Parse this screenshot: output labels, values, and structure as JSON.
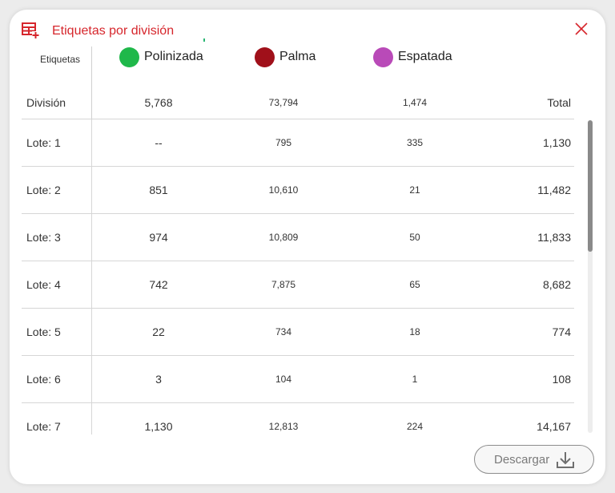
{
  "dialog": {
    "title": "Etiquetas por división",
    "title_color": "#d6262c",
    "icon": "table-add-icon",
    "close_icon": "close-icon"
  },
  "header": {
    "label": "Etiquetas",
    "legend": [
      {
        "name": "Polinizada",
        "color": "#1fb84a"
      },
      {
        "name": "Palma",
        "color": "#a0101a"
      },
      {
        "name": "Espatada",
        "color": "#b94ab8"
      }
    ]
  },
  "summary": {
    "label": "División",
    "polinizada": "5,768",
    "palma": "73,794",
    "espatada": "1,474",
    "total_label": "Total"
  },
  "rows": [
    {
      "label": "Lote: 1",
      "polinizada": "--",
      "palma": "795",
      "espatada": "335",
      "total": "1,130"
    },
    {
      "label": "Lote: 2",
      "polinizada": "851",
      "palma": "10,610",
      "espatada": "21",
      "total": "11,482"
    },
    {
      "label": "Lote: 3",
      "polinizada": "974",
      "palma": "10,809",
      "espatada": "50",
      "total": "11,833"
    },
    {
      "label": "Lote: 4",
      "polinizada": "742",
      "palma": "7,875",
      "espatada": "65",
      "total": "8,682"
    },
    {
      "label": "Lote: 5",
      "polinizada": "22",
      "palma": "734",
      "espatada": "18",
      "total": "774"
    },
    {
      "label": "Lote: 6",
      "polinizada": "3",
      "palma": "104",
      "espatada": "1",
      "total": "108"
    },
    {
      "label": "Lote: 7",
      "polinizada": "1,130",
      "palma": "12,813",
      "espatada": "224",
      "total": "14,167"
    }
  ],
  "footer": {
    "download_label": "Descargar",
    "download_icon": "download-icon"
  }
}
